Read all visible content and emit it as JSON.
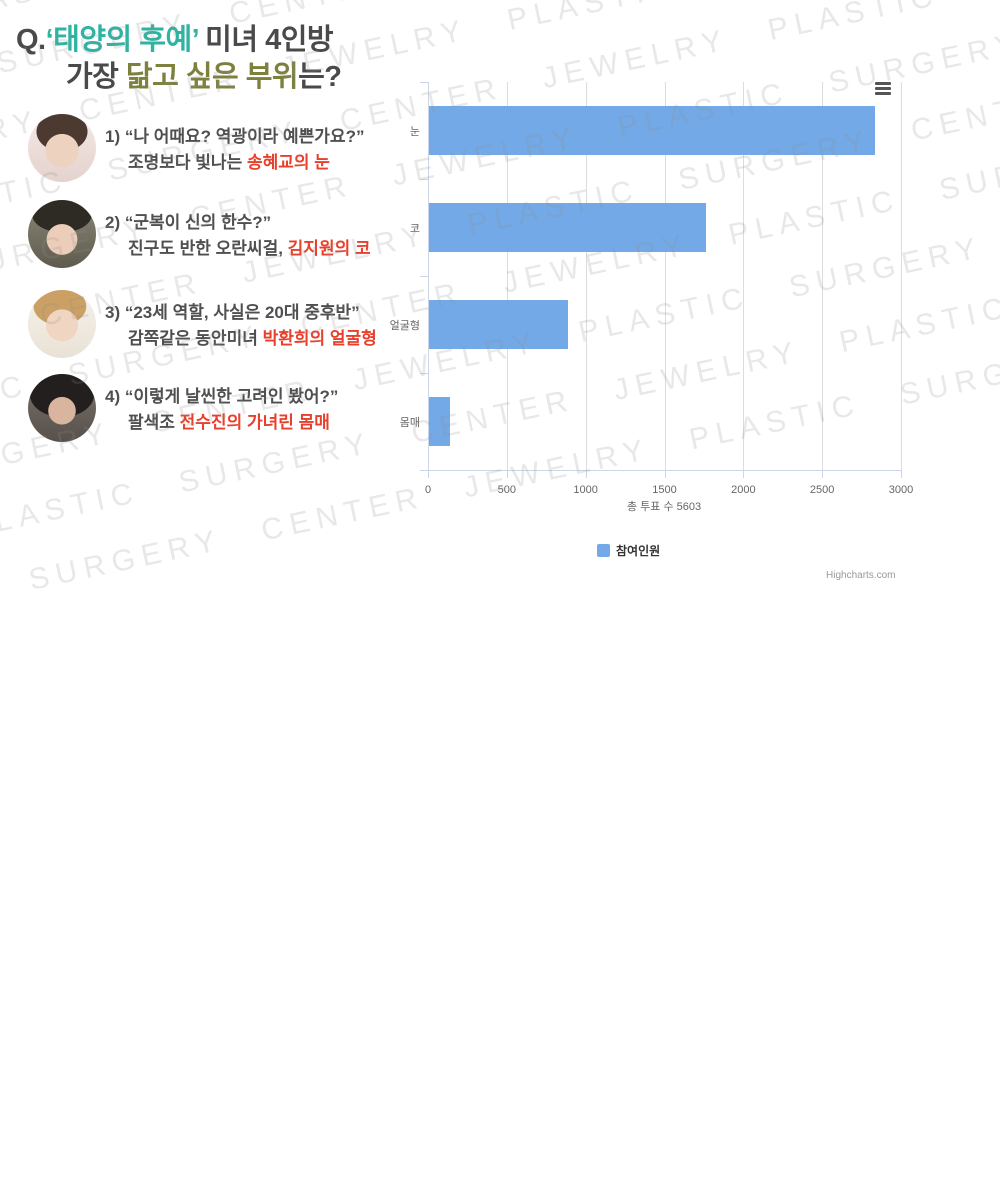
{
  "watermark": {
    "text": "JEWELRY PLASTIC SURGERY CENTER",
    "color": "#8f8f8f"
  },
  "title": {
    "q": "Q.",
    "show_name": "‘태양의 후예’",
    "line1_rest": " 미녀 4인방",
    "line2_lead": "가장 ",
    "line2_accent": "닮고 싶은 부위",
    "line2_tail": "는?",
    "text_color": "#4a4a4a",
    "accent_teal": "#2fb3a3",
    "accent_olive": "#7e813e"
  },
  "items": [
    {
      "line1": "1) “나 어때요? 역광이라 예쁜가요?”",
      "line2_plain": "조명보다 빛나는",
      "line2_highlight": "송혜교의 눈"
    },
    {
      "line1": "2) “군복이 신의 한수?”",
      "line2_plain": "진구도 반한 오란씨걸,",
      "line2_highlight": "김지원의 코"
    },
    {
      "line1": "3) “23세 역할, 사실은 20대 중후반”",
      "line2_plain": "감쪽같은 동안미녀",
      "line2_highlight": "박환희의 얼굴형"
    },
    {
      "line1": "4) “이렇게 날씬한 고려인 봤어?”",
      "line2_plain": "팔색조",
      "line2_highlight": "전수진의 가녀린 몸매"
    }
  ],
  "chart_data": {
    "type": "bar",
    "orientation": "horizontal",
    "categories": [
      "눈",
      "코",
      "얼굴형",
      "몸매"
    ],
    "series": [
      {
        "name": "참여인원",
        "values": [
          2830,
          1760,
          880,
          133
        ]
      }
    ],
    "xticks": [
      0,
      500,
      1000,
      1500,
      2000,
      2500,
      3000
    ],
    "xlim": [
      0,
      3000
    ],
    "xlabel": "총 투표 수 5603",
    "total_votes": 5603,
    "grid": true,
    "legend_position": "bottom",
    "bar_color": "#73a9e6"
  },
  "credit": "Highcharts.com"
}
